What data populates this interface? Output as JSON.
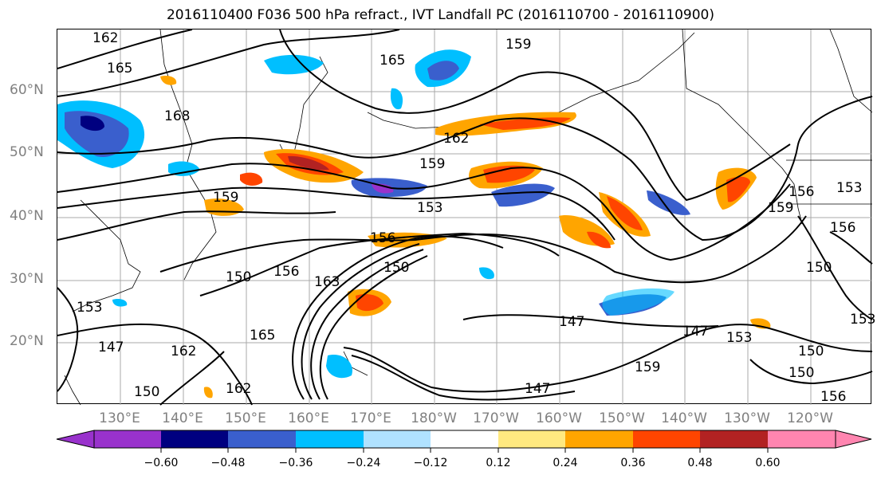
{
  "title": "2016110400 F036 500 hPa refract., IVT Landfall PC (2016110700 - 2016110900)",
  "lat_labels": [
    "60°N",
    "50°N",
    "40°N",
    "30°N",
    "20°N"
  ],
  "lon_labels": [
    "130°E",
    "140°E",
    "150°E",
    "160°E",
    "170°E",
    "180°W",
    "170°W",
    "160°W",
    "150°W",
    "140°W",
    "130°W",
    "120°W"
  ],
  "contour_labels": [
    "162",
    "165",
    "165",
    "159",
    "168",
    "162",
    "159",
    "159",
    "153",
    "156",
    "156",
    "159",
    "153",
    "156",
    "150",
    "156",
    "150",
    "163",
    "147",
    "162",
    "165",
    "147",
    "147",
    "153",
    "150",
    "150",
    "153",
    "162",
    "150",
    "159",
    "147",
    "150",
    "156",
    "153"
  ],
  "colorbar": {
    "ticks": [
      "−0.60",
      "−0.48",
      "−0.36",
      "−0.24",
      "−0.12",
      "0.12",
      "0.24",
      "0.36",
      "0.48",
      "0.60"
    ],
    "colors": [
      "#9932cc",
      "#000080",
      "#3a5fcd",
      "#00bfff",
      "#b0e2ff",
      "#ffffff",
      "#ffe980",
      "#ffa500",
      "#ff4500",
      "#b22222",
      "#ff85b0"
    ]
  }
}
